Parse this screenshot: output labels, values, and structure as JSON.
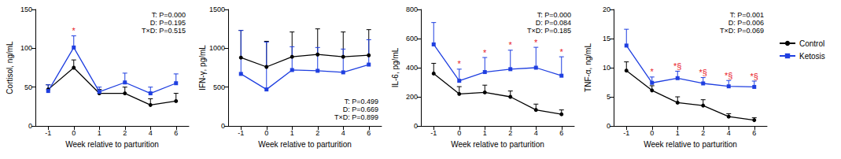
{
  "chart_data": [
    {
      "type": "line",
      "x_label": "Week relative to parturition",
      "y_label": "Cortisol, ng/mL",
      "categories": [
        "-1",
        "0",
        "1",
        "2",
        "4",
        "6"
      ],
      "ylim": [
        0,
        150
      ],
      "yticks": [
        0,
        50,
        100,
        150
      ],
      "grid": false,
      "annotations": [
        "T: P=0.000",
        "D: P=0.195",
        "T×D: P=0.515"
      ],
      "series": [
        {
          "name": "Control",
          "color": "#000000",
          "marker": "circle",
          "values": [
            47,
            75,
            42,
            42,
            27,
            32
          ],
          "errors": [
            6,
            10,
            5,
            8,
            8,
            10
          ]
        },
        {
          "name": "Ketosis",
          "color": "#1f3fe0",
          "marker": "square",
          "values": [
            45,
            101,
            44,
            56,
            42,
            55
          ],
          "errors": [
            8,
            15,
            6,
            12,
            8,
            12
          ],
          "significance": [
            null,
            "*",
            null,
            null,
            null,
            null
          ]
        }
      ]
    },
    {
      "type": "line",
      "x_label": "Week relative to parturition",
      "y_label": "IFN-γ, pg/mL",
      "categories": [
        "-1",
        "0",
        "1",
        "2",
        "4",
        "6"
      ],
      "ylim": [
        0,
        1500
      ],
      "yticks": [
        0,
        500,
        1000,
        1500
      ],
      "grid": false,
      "annotations": [
        "T: P=0.499",
        "D: P=0.669",
        "T×D: P=0.899"
      ],
      "series": [
        {
          "name": "Control",
          "color": "#000000",
          "marker": "circle",
          "values": [
            880,
            760,
            890,
            920,
            890,
            910
          ],
          "errors": [
            350,
            330,
            320,
            330,
            320,
            330
          ]
        },
        {
          "name": "Ketosis",
          "color": "#1f3fe0",
          "marker": "square",
          "values": [
            670,
            470,
            720,
            710,
            690,
            790
          ],
          "errors": [
            560,
            610,
            300,
            300,
            300,
            320
          ]
        }
      ]
    },
    {
      "type": "line",
      "x_label": "Week relative to parturition",
      "y_label": "IL-6, pg/mL",
      "categories": [
        "-1",
        "0",
        "1",
        "2",
        "4",
        "6"
      ],
      "ylim": [
        0,
        800
      ],
      "yticks": [
        0,
        200,
        400,
        600,
        800
      ],
      "grid": false,
      "annotations": [
        "T: P=0.000",
        "D: P=0.084",
        "T×D: P=0.185"
      ],
      "series": [
        {
          "name": "Control",
          "color": "#000000",
          "marker": "circle",
          "values": [
            360,
            220,
            230,
            200,
            110,
            80
          ],
          "errors": [
            70,
            50,
            50,
            40,
            40,
            30
          ]
        },
        {
          "name": "Ketosis",
          "color": "#1f3fe0",
          "marker": "square",
          "values": [
            560,
            310,
            370,
            390,
            400,
            345
          ],
          "errors": [
            150,
            80,
            100,
            130,
            140,
            130
          ],
          "significance": [
            null,
            "*",
            "*",
            "*",
            "*",
            "*"
          ]
        }
      ]
    },
    {
      "type": "line",
      "x_label": "Week relative to parturition",
      "y_label": "TNF-α, ng/mL",
      "categories": [
        "-1",
        "0",
        "1",
        "2",
        "4",
        "6"
      ],
      "ylim": [
        0,
        20
      ],
      "yticks": [
        0,
        5,
        10,
        15,
        20
      ],
      "grid": false,
      "legend": "right",
      "annotations": [
        "T: P=0.001",
        "D: P=0.006",
        "T×D: P=0.069"
      ],
      "series": [
        {
          "name": "Control",
          "color": "#000000",
          "marker": "circle",
          "values": [
            9.5,
            6.1,
            4.0,
            3.5,
            1.6,
            1.0
          ],
          "errors": [
            1.5,
            0.8,
            1.0,
            1.0,
            0.5,
            0.4
          ]
        },
        {
          "name": "Ketosis",
          "color": "#1f3fe0",
          "marker": "square",
          "values": [
            13.8,
            7.4,
            8.2,
            7.3,
            6.8,
            6.7
          ],
          "errors": [
            2.8,
            1.0,
            1.2,
            1.0,
            1.0,
            1.0
          ],
          "significance": [
            null,
            "*",
            "*§",
            "*§",
            "*§",
            "*§"
          ]
        }
      ]
    }
  ]
}
